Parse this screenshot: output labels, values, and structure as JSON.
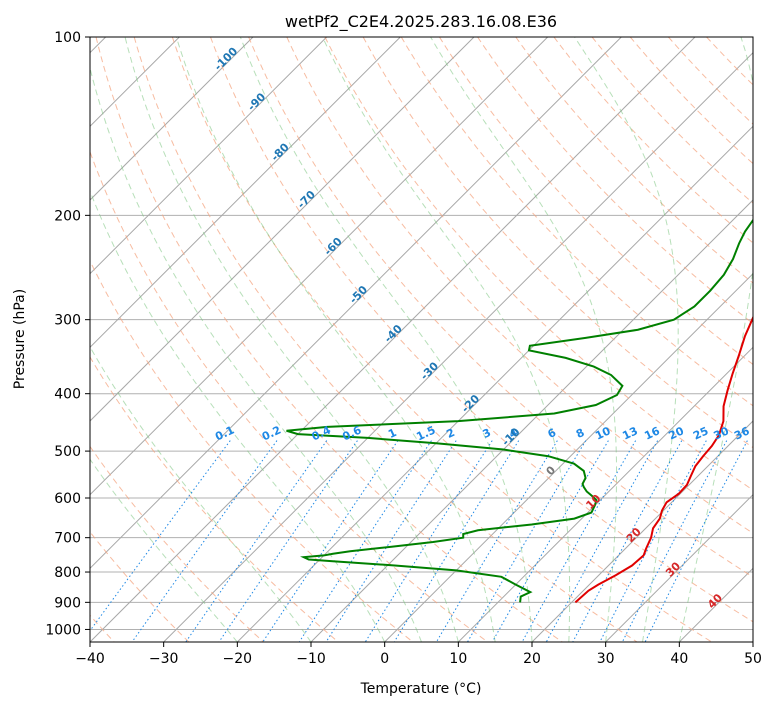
{
  "chart_data": {
    "type": "skew-t",
    "title": "wetPf2_C2E4.2025.283.16.08.E36",
    "xlabel": "Temperature (°C)",
    "ylabel": "Pressure (hPa)",
    "xlim": [
      -40,
      50
    ],
    "ylim_hpa": [
      1050,
      100
    ],
    "x_ticks": [
      -40,
      -30,
      -20,
      -10,
      0,
      10,
      20,
      30,
      40,
      50
    ],
    "x_tick_labels": [
      "−40",
      "−30",
      "−20",
      "−10",
      "0",
      "10",
      "20",
      "30",
      "40",
      "50"
    ],
    "y_ticks": [
      100,
      200,
      300,
      400,
      500,
      600,
      700,
      800,
      900,
      1000
    ],
    "y_tick_labels": [
      "100",
      "200",
      "300",
      "400",
      "500",
      "600",
      "700",
      "800",
      "900",
      "1000"
    ],
    "grid": true,
    "isotherms_c": [
      -130,
      -120,
      -110,
      -100,
      -90,
      -80,
      -70,
      -60,
      -50,
      -40,
      -30,
      -20,
      -10,
      0,
      10,
      20,
      30,
      40,
      50
    ],
    "dry_adiabats_c": [
      -60,
      -50,
      -40,
      -30,
      -20,
      -10,
      0,
      10,
      20,
      30,
      40,
      50,
      60,
      70,
      80,
      90,
      100,
      110,
      120,
      130,
      140,
      150,
      160,
      170,
      180
    ],
    "moist_adiabats_c": [
      -20,
      -10,
      0,
      5,
      10,
      15,
      20,
      25,
      30,
      35,
      40
    ],
    "mixing_ratio_lines": {
      "values": [
        0.1,
        0.2,
        0.4,
        0.6,
        1,
        1.5,
        2,
        3,
        4,
        6,
        8,
        10,
        13,
        16,
        20,
        25,
        30,
        36
      ],
      "labels": [
        "0.1",
        "0.2",
        "0.4",
        "0.6",
        "1",
        "1.5",
        "2",
        "3",
        "4",
        "6",
        "8",
        "10",
        "13",
        "16",
        "20",
        "25",
        "30",
        "36"
      ],
      "label_pressure_hpa": 480,
      "color": "#1e88e5"
    },
    "isotherm_labels": [
      {
        "label": "-100",
        "temp_c": -100,
        "pressure_hpa": 110
      },
      {
        "label": "-90",
        "temp_c": -90,
        "pressure_hpa": 130
      },
      {
        "label": "-80",
        "temp_c": -80,
        "pressure_hpa": 158
      },
      {
        "label": "-70",
        "temp_c": -70,
        "pressure_hpa": 190
      },
      {
        "label": "-60",
        "temp_c": -60,
        "pressure_hpa": 228
      },
      {
        "label": "-50",
        "temp_c": -50,
        "pressure_hpa": 275
      },
      {
        "label": "-40",
        "temp_c": -40,
        "pressure_hpa": 320
      },
      {
        "label": "-30",
        "temp_c": -30,
        "pressure_hpa": 370
      },
      {
        "label": "-20",
        "temp_c": -20,
        "pressure_hpa": 420
      },
      {
        "label": "-10",
        "temp_c": -10,
        "pressure_hpa": 478
      },
      {
        "label": "0",
        "temp_c": 0,
        "pressure_hpa": 545
      },
      {
        "label": "10",
        "temp_c": 10,
        "pressure_hpa": 615
      },
      {
        "label": "20",
        "temp_c": 20,
        "pressure_hpa": 700
      },
      {
        "label": "30",
        "temp_c": 30,
        "pressure_hpa": 800
      },
      {
        "label": "40",
        "temp_c": 40,
        "pressure_hpa": 905
      }
    ],
    "series": [
      {
        "name": "Temperature",
        "color": "#e00000",
        "points": [
          [
            900,
            20.5
          ],
          [
            860,
            20.7
          ],
          [
            840,
            21.2
          ],
          [
            810,
            22.3
          ],
          [
            780,
            23.2
          ],
          [
            750,
            23.4
          ],
          [
            730,
            22.8
          ],
          [
            700,
            22.0
          ],
          [
            675,
            21.0
          ],
          [
            650,
            20.6
          ],
          [
            630,
            19.8
          ],
          [
            610,
            19.3
          ],
          [
            590,
            19.8
          ],
          [
            570,
            19.7
          ],
          [
            550,
            19.0
          ],
          [
            530,
            18.3
          ],
          [
            510,
            18.0
          ],
          [
            490,
            17.8
          ],
          [
            470,
            17.3
          ],
          [
            445,
            16.0
          ],
          [
            420,
            14.0
          ],
          [
            395,
            12.4
          ],
          [
            370,
            10.8
          ],
          [
            345,
            9.2
          ],
          [
            320,
            7.4
          ],
          [
            295,
            5.8
          ],
          [
            270,
            4.3
          ],
          [
            245,
            2.9
          ],
          [
            225,
            1.8
          ],
          [
            205,
            1.2
          ],
          [
            185,
            1.0
          ],
          [
            165,
            0.8
          ],
          [
            148,
            0.0
          ],
          [
            133,
            -1.7
          ],
          [
            121,
            -3.5
          ],
          [
            113,
            -4.5
          ],
          [
            107,
            -4.7
          ],
          [
            100,
            -4.8
          ]
        ]
      },
      {
        "name": "Dewpoint",
        "color": "#008000",
        "points": [
          [
            900,
            13.0
          ],
          [
            880,
            12.3
          ],
          [
            865,
            13.0
          ],
          [
            840,
            10.0
          ],
          [
            815,
            7.0
          ],
          [
            795,
            0.0
          ],
          [
            780,
            -9.0
          ],
          [
            767,
            -18.0
          ],
          [
            762,
            -21.5
          ],
          [
            755,
            -22.5
          ],
          [
            750,
            -20.0
          ],
          [
            745,
            -19.0
          ],
          [
            738,
            -17.0
          ],
          [
            725,
            -12.0
          ],
          [
            712,
            -7.0
          ],
          [
            700,
            -3.5
          ],
          [
            690,
            -4.0
          ],
          [
            680,
            -2.5
          ],
          [
            665,
            4.0
          ],
          [
            650,
            9.0
          ],
          [
            635,
            10.5
          ],
          [
            618,
            10.0
          ],
          [
            605,
            9.5
          ],
          [
            595,
            8.3
          ],
          [
            585,
            7.0
          ],
          [
            575,
            6.0
          ],
          [
            568,
            5.4
          ],
          [
            555,
            5.0
          ],
          [
            540,
            3.8
          ],
          [
            525,
            1.5
          ],
          [
            510,
            -3.0
          ],
          [
            497,
            -10.0
          ],
          [
            485,
            -20.0
          ],
          [
            475,
            -30.0
          ],
          [
            468,
            -40.0
          ],
          [
            462,
            -42.0
          ],
          [
            455,
            -37.0
          ],
          [
            445,
            -20.0
          ],
          [
            432,
            -8.0
          ],
          [
            418,
            -3.5
          ],
          [
            402,
            -2.0
          ],
          [
            388,
            -2.5
          ],
          [
            372,
            -5.5
          ],
          [
            360,
            -9.0
          ],
          [
            348,
            -14.0
          ],
          [
            338,
            -20.0
          ],
          [
            332,
            -20.5
          ],
          [
            322,
            -14.0
          ],
          [
            312,
            -8.0
          ],
          [
            300,
            -4.5
          ],
          [
            285,
            -3.5
          ],
          [
            268,
            -3.5
          ],
          [
            252,
            -3.8
          ],
          [
            237,
            -4.7
          ],
          [
            223,
            -6.0
          ],
          [
            213,
            -6.8
          ],
          [
            203,
            -7.3
          ],
          [
            195,
            -7.6
          ],
          [
            188,
            -8.2
          ],
          [
            182,
            -8.4
          ],
          [
            176,
            -8.3
          ],
          [
            168,
            -7.4
          ],
          [
            160,
            -6.5
          ],
          [
            150,
            -5.2
          ],
          [
            140,
            -3.7
          ],
          [
            128,
            -2.4
          ],
          [
            120,
            -1.2
          ],
          [
            112,
            0.0
          ],
          [
            106,
            1.2
          ],
          [
            100,
            1.8
          ]
        ]
      }
    ]
  }
}
